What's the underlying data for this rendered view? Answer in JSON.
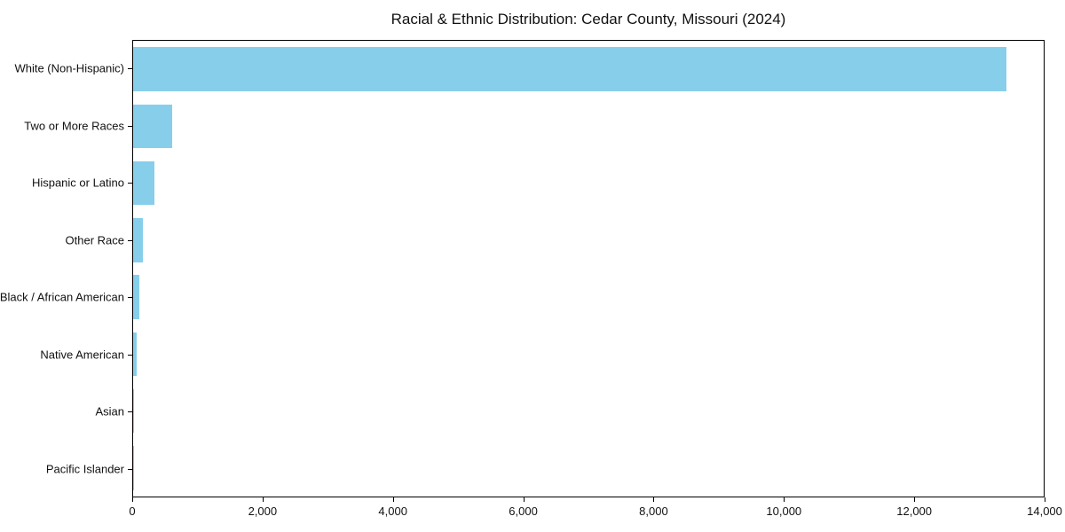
{
  "chart_data": {
    "type": "bar",
    "orientation": "horizontal",
    "title": "Racial & Ethnic Distribution: Cedar County, Missouri (2024)",
    "categories": [
      "White (Non-Hispanic)",
      "Two or More Races",
      "Hispanic or Latino",
      "Other Race",
      "Black / African American",
      "Native American",
      "Asian",
      "Pacific Islander"
    ],
    "values": [
      13430,
      600,
      330,
      150,
      90,
      48,
      14,
      3
    ],
    "xlabel": "",
    "ylabel": "",
    "xlim": [
      0,
      14000
    ],
    "x_ticks": [
      0,
      2000,
      4000,
      6000,
      8000,
      10000,
      12000,
      14000
    ],
    "x_tick_labels": [
      "0",
      "2,000",
      "4,000",
      "6,000",
      "8,000",
      "10,000",
      "12,000",
      "14,000"
    ],
    "bar_color": "#87CEEB",
    "axis_color": "#000000",
    "background_color": "#FFFFFF",
    "grid": false,
    "legend": null
  }
}
